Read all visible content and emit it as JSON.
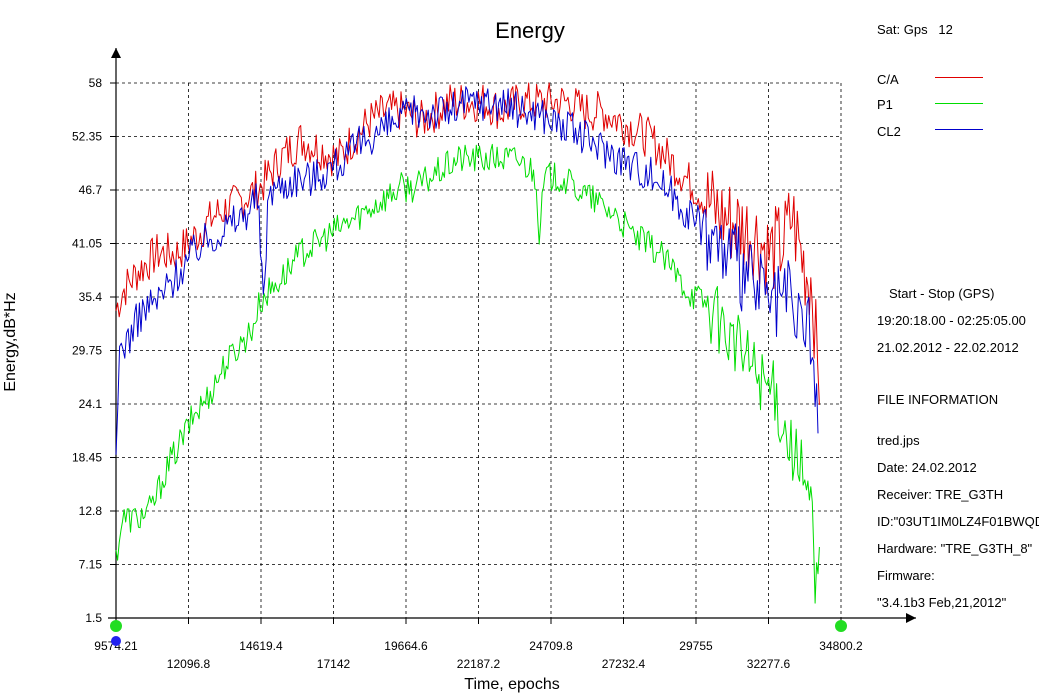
{
  "chart_data": {
    "type": "line",
    "title": "Energy",
    "xlabel": "Time, epochs",
    "ylabel": "Energy,dB*Hz",
    "xlim": [
      9574.21,
      34800.2
    ],
    "ylim": [
      1.5,
      58
    ],
    "x_ticks_row1": [
      "9574.21",
      "14619.4",
      "19664.6",
      "24709.8",
      "29755",
      "34800.2"
    ],
    "x_ticks_row2": [
      "12096.8",
      "17142",
      "22187.2",
      "27232.4",
      "32277.6"
    ],
    "y_ticks": [
      "1.5",
      "7.15",
      "12.8",
      "18.45",
      "24.1",
      "29.75",
      "35.4",
      "41.05",
      "46.7",
      "52.35",
      "58"
    ],
    "grid": true,
    "legend_position": "top-right",
    "series": [
      {
        "name": "C/A",
        "color": "#e00000",
        "x": [
          9574,
          9800,
          10300,
          11000,
          11700,
          12400,
          13000,
          13600,
          14100,
          14600,
          15300,
          16000,
          16700,
          17300,
          17800,
          18400,
          19000,
          19600,
          20200,
          20700,
          21200,
          21800,
          22400,
          23000,
          23600,
          24100,
          24700,
          25300,
          25900,
          26500,
          27100,
          27700,
          28200,
          28800,
          29400,
          30000,
          30600,
          31200,
          31800,
          32300,
          32800,
          33100,
          33400,
          33600,
          33800,
          34050
        ],
        "y": [
          34,
          36,
          38,
          40,
          40,
          42,
          44,
          45,
          46,
          47,
          50,
          52,
          51,
          50,
          52,
          54,
          55,
          55,
          54,
          55,
          56,
          56,
          56,
          55,
          56,
          56,
          56,
          56,
          55,
          55,
          54,
          53,
          52,
          50,
          48,
          46,
          44,
          43,
          42,
          40,
          41,
          44,
          40,
          38,
          37,
          24
        ]
      },
      {
        "name": "P1",
        "color": "#00dd00",
        "x": [
          9574,
          9800,
          10300,
          10800,
          11300,
          11800,
          12300,
          12800,
          13300,
          13800,
          14300,
          14600,
          14900,
          15500,
          16000,
          16500,
          17000,
          17500,
          18000,
          18500,
          19000,
          19500,
          20000,
          20500,
          21000,
          21500,
          22000,
          22500,
          23000,
          23500,
          24000,
          24200,
          24300,
          24500,
          25000,
          25500,
          26000,
          26500,
          27000,
          27500,
          28000,
          28500,
          29000,
          29500,
          30000,
          30500,
          31000,
          31500,
          32000,
          32500,
          32800,
          33000,
          33300,
          33600,
          33800,
          33900,
          34050
        ],
        "y": [
          8,
          12,
          12,
          13,
          17,
          20,
          23,
          25,
          28,
          30,
          32,
          35,
          36,
          38,
          40,
          41,
          42,
          43,
          44,
          45,
          46,
          47,
          47,
          48,
          49,
          50,
          50,
          50,
          50,
          50,
          49,
          48,
          42,
          48,
          48,
          47,
          46,
          45,
          44,
          42,
          41,
          40,
          38,
          36,
          35,
          33,
          31,
          29,
          27,
          25,
          22,
          20,
          18,
          15,
          12,
          3,
          9
        ]
      },
      {
        "name": "CL2",
        "color": "#0000cc",
        "x": [
          9574,
          9700,
          10000,
          10500,
          11000,
          11500,
          12000,
          12500,
          13000,
          13500,
          14000,
          14500,
          14700,
          14900,
          15300,
          15800,
          16400,
          17000,
          17600,
          18200,
          18800,
          19400,
          20000,
          20600,
          21200,
          21800,
          22400,
          23000,
          23600,
          24200,
          24800,
          25400,
          26000,
          26600,
          27200,
          27800,
          28400,
          29000,
          29600,
          30200,
          30800,
          31400,
          32000,
          32500,
          32900,
          33200,
          33500,
          33800,
          34000
        ],
        "y": [
          17,
          30,
          31,
          34,
          35,
          37,
          39,
          41,
          42,
          43,
          44,
          46,
          35,
          47,
          47,
          48,
          48,
          49,
          50,
          52,
          53,
          54,
          55,
          55,
          55,
          56,
          56,
          56,
          55,
          55,
          54,
          53,
          52,
          51,
          50,
          49,
          48,
          46,
          44,
          42,
          40,
          38,
          36,
          34,
          36,
          32,
          34,
          30,
          21
        ]
      }
    ]
  },
  "legend": {
    "sat_label": "Sat: Gps",
    "sat_number": "12",
    "items": [
      {
        "label": "C/A",
        "color": "#e00000"
      },
      {
        "label": "P1",
        "color": "#00dd00"
      },
      {
        "label": "CL2",
        "color": "#0000cc"
      }
    ]
  },
  "info": {
    "start_stop_title": "Start  -  Stop  (GPS)",
    "time_range": "19:20:18.00 - 02:25:05.00",
    "date_range": "21.02.2012 - 22.02.2012",
    "file_info_title": "FILE INFORMATION",
    "file_name": "tred.jps",
    "date": "Date: 24.02.2012",
    "receiver": "Receiver: TRE_G3TH",
    "id": "ID:\"03UT1IM0LZ4F01BWQD",
    "hardware": "Hardware: \"TRE_G3TH_8\"",
    "firmware": "Firmware:",
    "firmware_version": "\"3.4.1b3 Feb,21,2012\""
  }
}
